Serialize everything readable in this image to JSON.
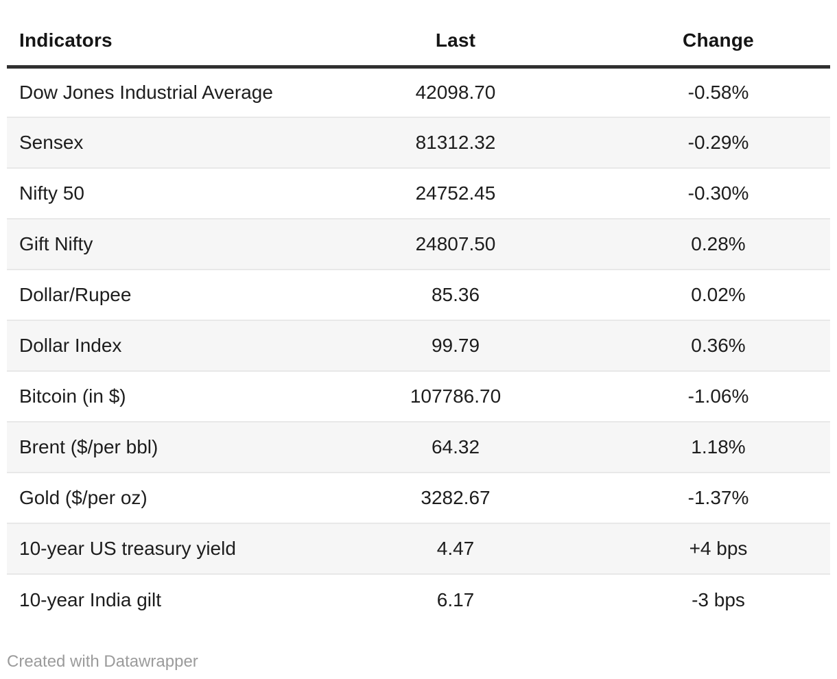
{
  "chart_data": {
    "type": "table",
    "title": "",
    "columns": [
      {
        "key": "indicator",
        "label": "Indicators",
        "align": "left"
      },
      {
        "key": "last",
        "label": "Last",
        "align": "center"
      },
      {
        "key": "change",
        "label": "Change",
        "align": "center"
      }
    ],
    "rows": [
      {
        "indicator": "Dow Jones Industrial Average",
        "last": "42098.70",
        "change": "-0.58%"
      },
      {
        "indicator": "Sensex",
        "last": "81312.32",
        "change": "-0.29%"
      },
      {
        "indicator": "Nifty 50",
        "last": "24752.45",
        "change": "-0.30%"
      },
      {
        "indicator": "Gift Nifty",
        "last": "24807.50",
        "change": "0.28%"
      },
      {
        "indicator": "Dollar/Rupee",
        "last": "85.36",
        "change": "0.02%"
      },
      {
        "indicator": "Dollar Index",
        "last": "99.79",
        "change": "0.36%"
      },
      {
        "indicator": "Bitcoin (in $)",
        "last": "107786.70",
        "change": "-1.06%"
      },
      {
        "indicator": "Brent ($/per bbl)",
        "last": "64.32",
        "change": "1.18%"
      },
      {
        "indicator": "Gold ($/per oz)",
        "last": "3282.67",
        "change": "-1.37%"
      },
      {
        "indicator": "10-year US treasury yield",
        "last": "4.47",
        "change": "+4 bps"
      },
      {
        "indicator": "10-year India gilt",
        "last": "6.17",
        "change": "-3 bps"
      }
    ],
    "layout_hints": {
      "zebra_striping": true,
      "striped_row_color": "#f6f6f6",
      "header_rule_color": "#303030",
      "row_divider_color": "#e8e8e8",
      "grid": "horizontal-only"
    }
  },
  "footer": {
    "credit": "Created with Datawrapper"
  },
  "colors": {
    "text": "#1d1d1d",
    "header_text": "#151515",
    "header_rule": "#303030",
    "alt_row": "#f6f6f6",
    "divider": "#e8e8e8",
    "credit_text": "#9b9b9b",
    "background": "#ffffff"
  }
}
